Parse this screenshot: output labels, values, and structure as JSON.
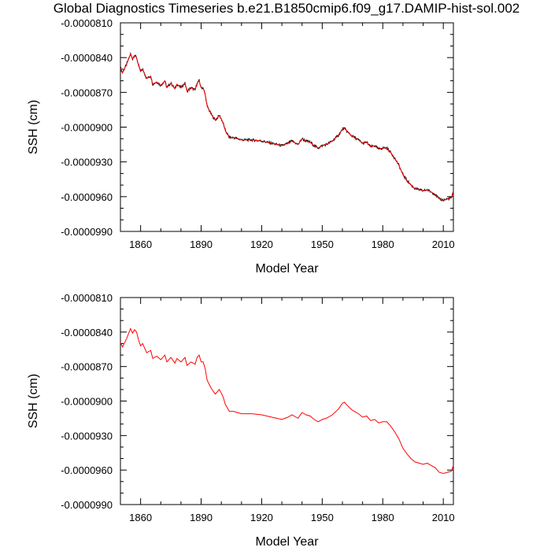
{
  "figure": {
    "title": "Global Diagnostics Timeseries b.e21.B1850cmip6.f09_g17.DAMIP-hist-sol.002"
  },
  "chart_data": [
    {
      "type": "line",
      "xlabel": "Model Year",
      "ylabel": "SSH (cm)",
      "xlim": [
        1850,
        2015
      ],
      "ylim": [
        -9.9e-05,
        -8.1e-05
      ],
      "xticks": [
        1860,
        1890,
        1920,
        1950,
        1980,
        2010
      ],
      "xtick_labels": [
        "1860",
        "1890",
        "1920",
        "1950",
        "1980",
        "2010"
      ],
      "yticks": [
        -8.1e-05,
        -8.4e-05,
        -8.7e-05,
        -9e-05,
        -9.3e-05,
        -9.6e-05,
        -9.9e-05
      ],
      "ytick_labels": [
        "-0.0000810",
        "-0.0000840",
        "-0.0000870",
        "-0.0000900",
        "-0.0000930",
        "-0.0000960",
        "-0.0000990"
      ],
      "series": [
        {
          "color": "#000000",
          "style": "monthly",
          "x": [
            1850,
            1851,
            1853,
            1855,
            1856,
            1857,
            1858,
            1859,
            1860,
            1861,
            1863,
            1865,
            1866,
            1868,
            1870,
            1872,
            1873,
            1875,
            1877,
            1878,
            1880,
            1882,
            1883,
            1885,
            1887,
            1888,
            1889,
            1890,
            1891,
            1892,
            1893,
            1895,
            1897,
            1899,
            1900,
            1901,
            1902,
            1904,
            1906,
            1908,
            1910,
            1915,
            1920,
            1925,
            1930,
            1933,
            1935,
            1938,
            1940,
            1942,
            1944,
            1946,
            1948,
            1950,
            1952,
            1955,
            1958,
            1960,
            1961,
            1963,
            1965,
            1968,
            1970,
            1972,
            1974,
            1976,
            1978,
            1980,
            1982,
            1984,
            1986,
            1988,
            1990,
            1992,
            1994,
            1996,
            1998,
            2000,
            2002,
            2004,
            2006,
            2008,
            2010,
            2012,
            2014,
            2015
          ],
          "y": [
            -8.49e-05,
            -8.53e-05,
            -8.46e-05,
            -8.37e-05,
            -8.41e-05,
            -8.38e-05,
            -8.4e-05,
            -8.47e-05,
            -8.52e-05,
            -8.5e-05,
            -8.58e-05,
            -8.56e-05,
            -8.63e-05,
            -8.61e-05,
            -8.64e-05,
            -8.6e-05,
            -8.66e-05,
            -8.62e-05,
            -8.67e-05,
            -8.63e-05,
            -8.66e-05,
            -8.62e-05,
            -8.69e-05,
            -8.66e-05,
            -8.68e-05,
            -8.62e-05,
            -8.6e-05,
            -8.66e-05,
            -8.66e-05,
            -8.72e-05,
            -8.82e-05,
            -8.89e-05,
            -8.94e-05,
            -8.9e-05,
            -8.93e-05,
            -8.97e-05,
            -9.03e-05,
            -9.09e-05,
            -9.09e-05,
            -9.1e-05,
            -9.11e-05,
            -9.11e-05,
            -9.12e-05,
            -9.14e-05,
            -9.16e-05,
            -9.14e-05,
            -9.12e-05,
            -9.15e-05,
            -9.1e-05,
            -9.12e-05,
            -9.13e-05,
            -9.16e-05,
            -9.18e-05,
            -9.16e-05,
            -9.15e-05,
            -9.12e-05,
            -9.07e-05,
            -9.02e-05,
            -9.01e-05,
            -9.05e-05,
            -9.08e-05,
            -9.11e-05,
            -9.14e-05,
            -9.13e-05,
            -9.17e-05,
            -9.16e-05,
            -9.19e-05,
            -9.18e-05,
            -9.18e-05,
            -9.22e-05,
            -9.27e-05,
            -9.33e-05,
            -9.41e-05,
            -9.46e-05,
            -9.5e-05,
            -9.53e-05,
            -9.54e-05,
            -9.55e-05,
            -9.54e-05,
            -9.56e-05,
            -9.58e-05,
            -9.62e-05,
            -9.63e-05,
            -9.62e-05,
            -9.61e-05,
            -9.56e-05
          ]
        },
        {
          "color": "#ff0000",
          "style": "annual",
          "x": [
            1850,
            1851,
            1853,
            1855,
            1856,
            1857,
            1858,
            1859,
            1860,
            1861,
            1863,
            1865,
            1866,
            1868,
            1870,
            1872,
            1873,
            1875,
            1877,
            1878,
            1880,
            1882,
            1883,
            1885,
            1887,
            1888,
            1889,
            1890,
            1891,
            1892,
            1893,
            1895,
            1897,
            1899,
            1900,
            1901,
            1902,
            1904,
            1906,
            1908,
            1910,
            1915,
            1920,
            1925,
            1930,
            1933,
            1935,
            1938,
            1940,
            1942,
            1944,
            1946,
            1948,
            1950,
            1952,
            1955,
            1958,
            1960,
            1961,
            1963,
            1965,
            1968,
            1970,
            1972,
            1974,
            1976,
            1978,
            1980,
            1982,
            1984,
            1986,
            1988,
            1990,
            1992,
            1994,
            1996,
            1998,
            2000,
            2002,
            2004,
            2006,
            2008,
            2010,
            2012,
            2014,
            2015
          ],
          "y": [
            -8.49e-05,
            -8.53e-05,
            -8.46e-05,
            -8.37e-05,
            -8.41e-05,
            -8.38e-05,
            -8.4e-05,
            -8.47e-05,
            -8.52e-05,
            -8.5e-05,
            -8.58e-05,
            -8.56e-05,
            -8.63e-05,
            -8.61e-05,
            -8.64e-05,
            -8.6e-05,
            -8.66e-05,
            -8.62e-05,
            -8.67e-05,
            -8.63e-05,
            -8.66e-05,
            -8.62e-05,
            -8.69e-05,
            -8.66e-05,
            -8.68e-05,
            -8.62e-05,
            -8.6e-05,
            -8.66e-05,
            -8.66e-05,
            -8.72e-05,
            -8.82e-05,
            -8.89e-05,
            -8.94e-05,
            -8.9e-05,
            -8.93e-05,
            -8.97e-05,
            -9.03e-05,
            -9.09e-05,
            -9.09e-05,
            -9.1e-05,
            -9.11e-05,
            -9.11e-05,
            -9.12e-05,
            -9.14e-05,
            -9.16e-05,
            -9.14e-05,
            -9.12e-05,
            -9.15e-05,
            -9.1e-05,
            -9.12e-05,
            -9.13e-05,
            -9.16e-05,
            -9.18e-05,
            -9.16e-05,
            -9.15e-05,
            -9.12e-05,
            -9.07e-05,
            -9.02e-05,
            -9.01e-05,
            -9.05e-05,
            -9.08e-05,
            -9.11e-05,
            -9.14e-05,
            -9.13e-05,
            -9.17e-05,
            -9.16e-05,
            -9.19e-05,
            -9.18e-05,
            -9.18e-05,
            -9.22e-05,
            -9.27e-05,
            -9.33e-05,
            -9.41e-05,
            -9.46e-05,
            -9.5e-05,
            -9.53e-05,
            -9.54e-05,
            -9.55e-05,
            -9.54e-05,
            -9.56e-05,
            -9.58e-05,
            -9.62e-05,
            -9.63e-05,
            -9.62e-05,
            -9.61e-05,
            -9.56e-05
          ]
        }
      ]
    },
    {
      "type": "line",
      "xlabel": "Model Year",
      "ylabel": "SSH (cm)",
      "xlim": [
        1850,
        2015
      ],
      "ylim": [
        -9.9e-05,
        -8.1e-05
      ],
      "xticks": [
        1860,
        1890,
        1920,
        1950,
        1980,
        2010
      ],
      "xtick_labels": [
        "1860",
        "1890",
        "1920",
        "1950",
        "1980",
        "2010"
      ],
      "yticks": [
        -8.1e-05,
        -8.4e-05,
        -8.7e-05,
        -9e-05,
        -9.3e-05,
        -9.6e-05,
        -9.9e-05
      ],
      "ytick_labels": [
        "-0.0000810",
        "-0.0000840",
        "-0.0000870",
        "-0.0000900",
        "-0.0000930",
        "-0.0000960",
        "-0.0000990"
      ],
      "series": [
        {
          "color": "#ff0000",
          "style": "annual",
          "x": [
            1850,
            1851,
            1853,
            1855,
            1856,
            1857,
            1858,
            1859,
            1860,
            1861,
            1863,
            1865,
            1866,
            1868,
            1870,
            1872,
            1873,
            1875,
            1877,
            1878,
            1880,
            1882,
            1883,
            1885,
            1887,
            1888,
            1889,
            1890,
            1891,
            1892,
            1893,
            1895,
            1897,
            1899,
            1900,
            1901,
            1902,
            1904,
            1906,
            1908,
            1910,
            1915,
            1920,
            1925,
            1930,
            1933,
            1935,
            1938,
            1940,
            1942,
            1944,
            1946,
            1948,
            1950,
            1952,
            1955,
            1958,
            1960,
            1961,
            1963,
            1965,
            1968,
            1970,
            1972,
            1974,
            1976,
            1978,
            1980,
            1982,
            1984,
            1986,
            1988,
            1990,
            1992,
            1994,
            1996,
            1998,
            2000,
            2002,
            2004,
            2006,
            2008,
            2010,
            2012,
            2014,
            2015
          ],
          "y": [
            -8.49e-05,
            -8.53e-05,
            -8.46e-05,
            -8.37e-05,
            -8.41e-05,
            -8.38e-05,
            -8.4e-05,
            -8.47e-05,
            -8.52e-05,
            -8.5e-05,
            -8.58e-05,
            -8.56e-05,
            -8.63e-05,
            -8.61e-05,
            -8.64e-05,
            -8.6e-05,
            -8.66e-05,
            -8.62e-05,
            -8.67e-05,
            -8.63e-05,
            -8.66e-05,
            -8.62e-05,
            -8.69e-05,
            -8.66e-05,
            -8.68e-05,
            -8.62e-05,
            -8.6e-05,
            -8.66e-05,
            -8.66e-05,
            -8.72e-05,
            -8.82e-05,
            -8.89e-05,
            -8.94e-05,
            -8.9e-05,
            -8.93e-05,
            -8.97e-05,
            -9.03e-05,
            -9.09e-05,
            -9.09e-05,
            -9.1e-05,
            -9.11e-05,
            -9.11e-05,
            -9.12e-05,
            -9.14e-05,
            -9.16e-05,
            -9.14e-05,
            -9.12e-05,
            -9.15e-05,
            -9.1e-05,
            -9.12e-05,
            -9.13e-05,
            -9.16e-05,
            -9.18e-05,
            -9.16e-05,
            -9.15e-05,
            -9.12e-05,
            -9.07e-05,
            -9.02e-05,
            -9.01e-05,
            -9.05e-05,
            -9.08e-05,
            -9.11e-05,
            -9.14e-05,
            -9.13e-05,
            -9.17e-05,
            -9.16e-05,
            -9.19e-05,
            -9.18e-05,
            -9.18e-05,
            -9.22e-05,
            -9.27e-05,
            -9.33e-05,
            -9.41e-05,
            -9.46e-05,
            -9.5e-05,
            -9.53e-05,
            -9.54e-05,
            -9.55e-05,
            -9.54e-05,
            -9.56e-05,
            -9.58e-05,
            -9.62e-05,
            -9.63e-05,
            -9.62e-05,
            -9.61e-05,
            -9.56e-05
          ]
        }
      ]
    }
  ]
}
